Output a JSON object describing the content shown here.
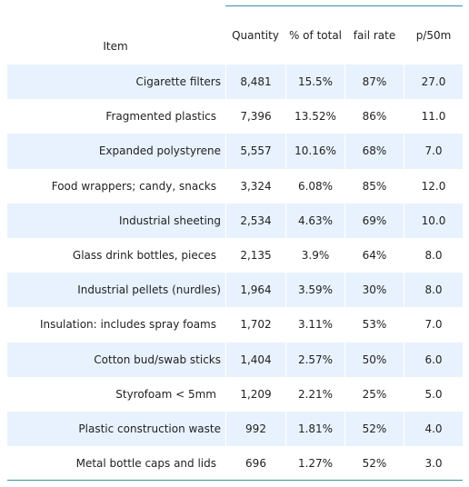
{
  "table": {
    "headers": {
      "item": "Item",
      "quantity": "Quantity",
      "pct_total": "% of total",
      "fail_rate": "fail rate",
      "p50m": "p/50m"
    },
    "rows": [
      {
        "item": "Cigarette filters",
        "quantity": "8,481",
        "pct_total": "15.5%",
        "fail_rate": "87%",
        "p50m": "27.0"
      },
      {
        "item": "Fragmented plastics",
        "quantity": "7,396",
        "pct_total": "13.52%",
        "fail_rate": "86%",
        "p50m": "11.0"
      },
      {
        "item": "Expanded polystyrene",
        "quantity": "5,557",
        "pct_total": "10.16%",
        "fail_rate": "68%",
        "p50m": "7.0"
      },
      {
        "item": "Food wrappers; candy, snacks",
        "quantity": "3,324",
        "pct_total": "6.08%",
        "fail_rate": "85%",
        "p50m": "12.0"
      },
      {
        "item": "Industrial sheeting",
        "quantity": "2,534",
        "pct_total": "4.63%",
        "fail_rate": "69%",
        "p50m": "10.0"
      },
      {
        "item": "Glass drink bottles, pieces",
        "quantity": "2,135",
        "pct_total": "3.9%",
        "fail_rate": "64%",
        "p50m": "8.0"
      },
      {
        "item": "Industrial pellets (nurdles)",
        "quantity": "1,964",
        "pct_total": "3.59%",
        "fail_rate": "30%",
        "p50m": "8.0"
      },
      {
        "item": "Insulation: includes spray foams",
        "quantity": "1,702",
        "pct_total": "3.11%",
        "fail_rate": "53%",
        "p50m": "7.0"
      },
      {
        "item": "Cotton bud/swab sticks",
        "quantity": "1,404",
        "pct_total": "2.57%",
        "fail_rate": "50%",
        "p50m": "6.0"
      },
      {
        "item": "Styrofoam < 5mm",
        "quantity": "1,209",
        "pct_total": "2.21%",
        "fail_rate": "25%",
        "p50m": "5.0"
      },
      {
        "item": "Plastic construction waste",
        "quantity": "992",
        "pct_total": "1.81%",
        "fail_rate": "52%",
        "p50m": "4.0"
      },
      {
        "item": "Metal bottle caps and lids",
        "quantity": "696",
        "pct_total": "1.27%",
        "fail_rate": "52%",
        "p50m": "3.0"
      }
    ]
  },
  "colors": {
    "stripe": "#e8f2fe",
    "rule": "#3a8fa6",
    "text": "#222222"
  }
}
